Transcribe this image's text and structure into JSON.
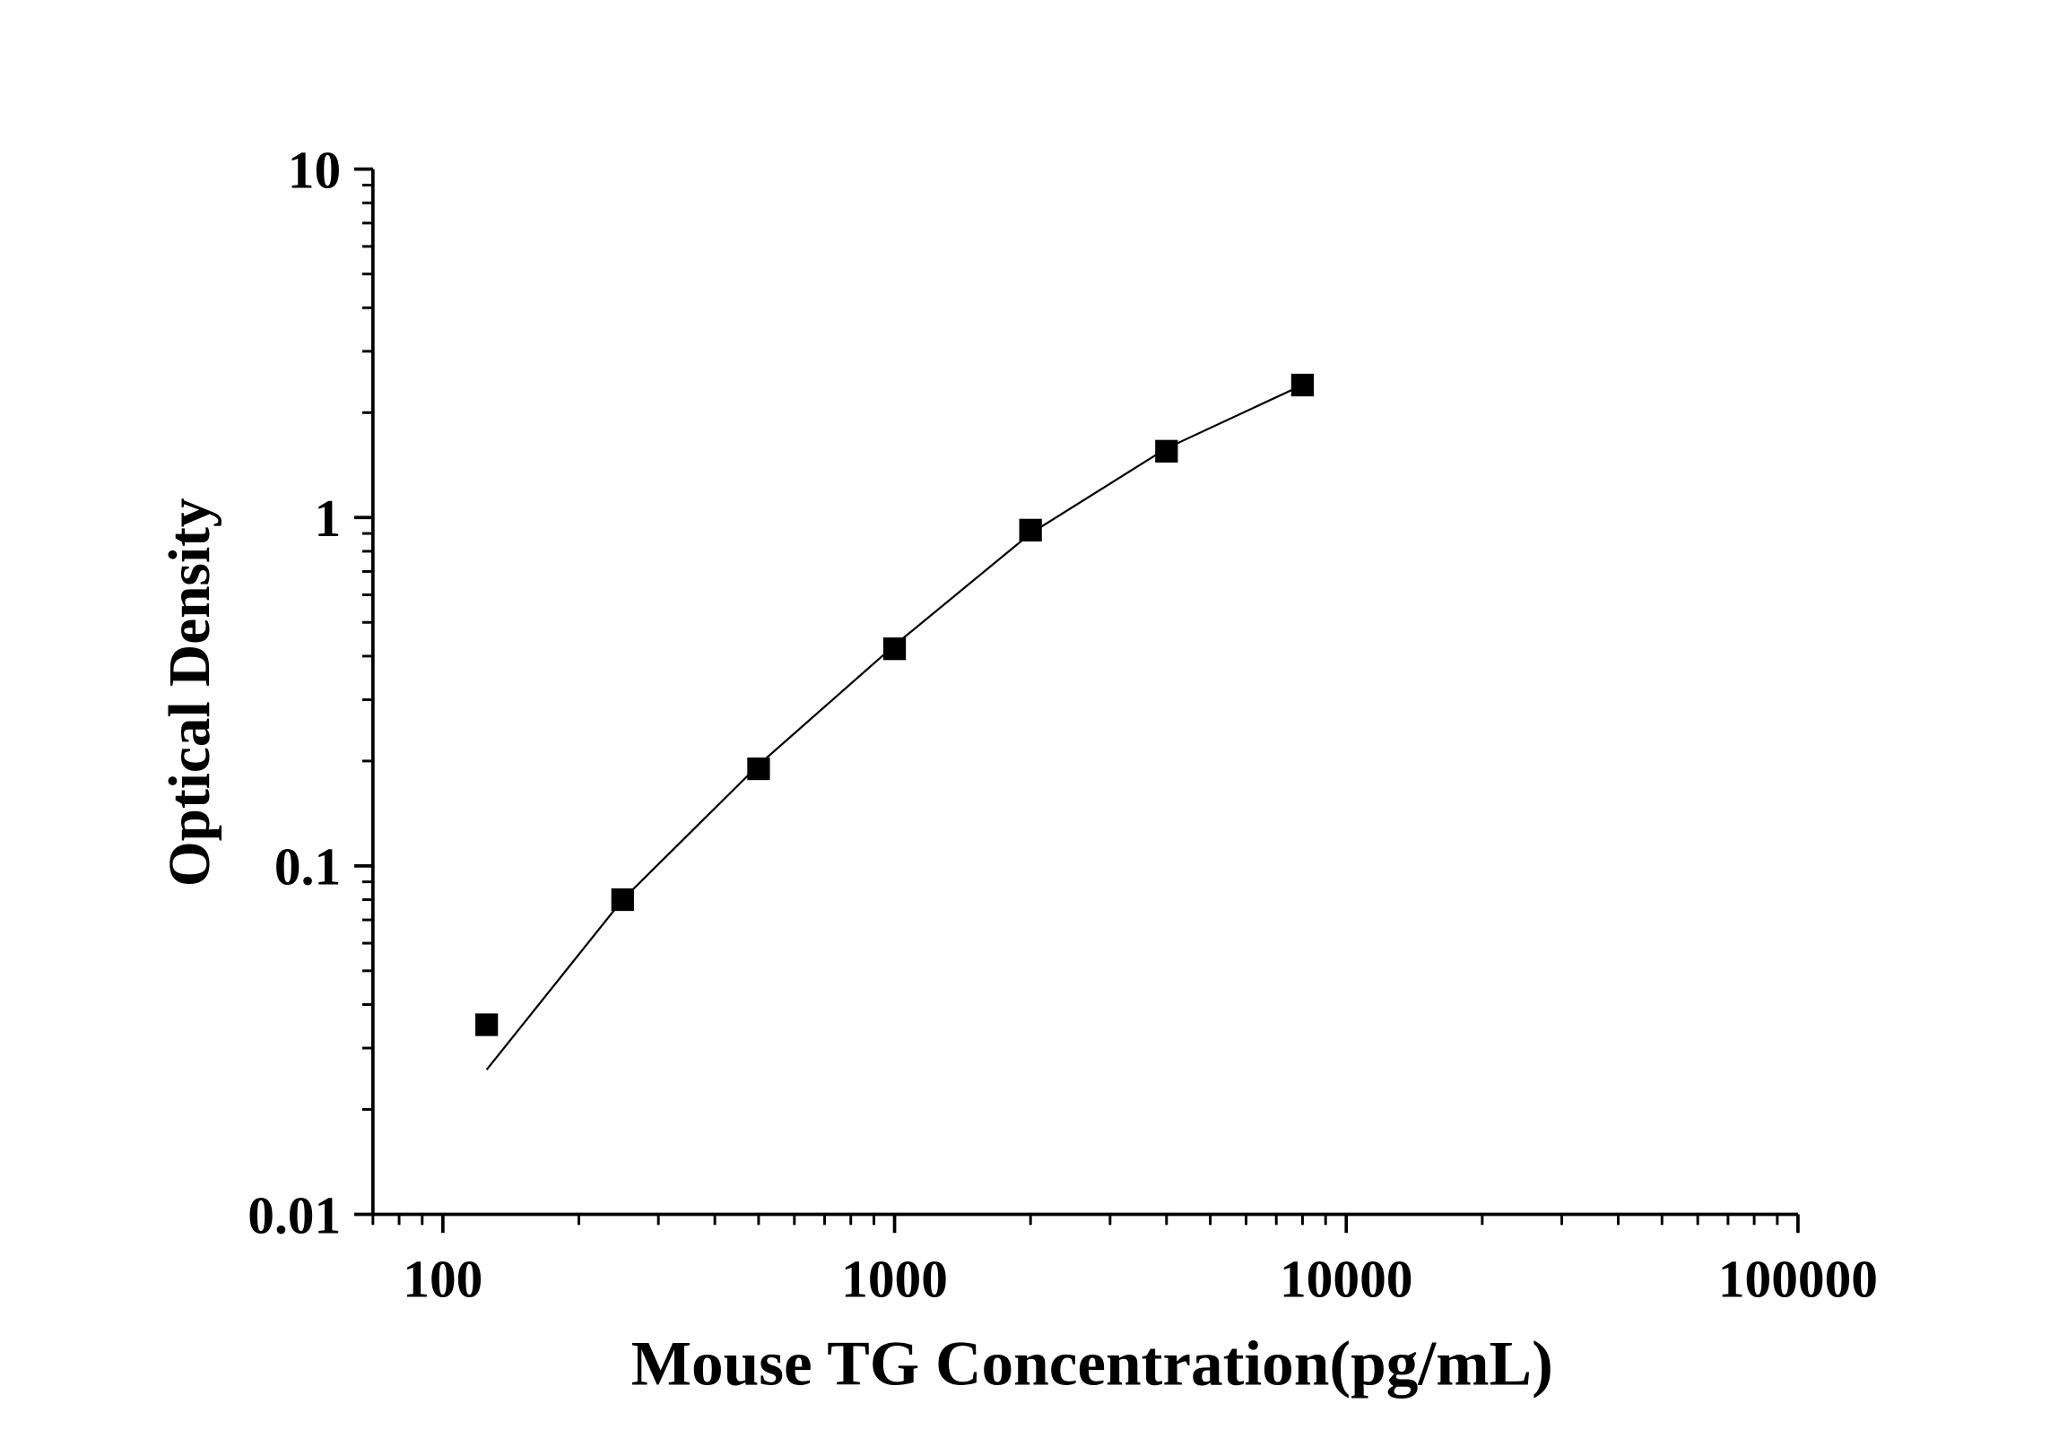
{
  "chart_data": {
    "type": "scatter",
    "xlabel": "Mouse TG Concentration(pg/mL)",
    "ylabel": "Optical Density",
    "x": [
      125,
      250,
      500,
      1000,
      2000,
      4000,
      8000
    ],
    "series": [
      {
        "values": [
          0.035,
          0.08,
          0.19,
          0.42,
          0.92,
          1.55,
          2.4
        ],
        "color": "#000000",
        "marker": "square"
      },
      {
        "values": [
          0.026,
          0.08,
          0.195,
          0.43,
          0.9,
          1.58,
          2.4
        ],
        "color": "#000000",
        "marker": "line"
      }
    ],
    "xscale": "log",
    "yscale": "log",
    "xlim": [
      70,
      100000
    ],
    "ylim": [
      0.01,
      10
    ],
    "xticks": [
      100,
      1000,
      10000,
      100000
    ],
    "yticks": [
      0.01,
      0.1,
      1,
      10
    ]
  }
}
